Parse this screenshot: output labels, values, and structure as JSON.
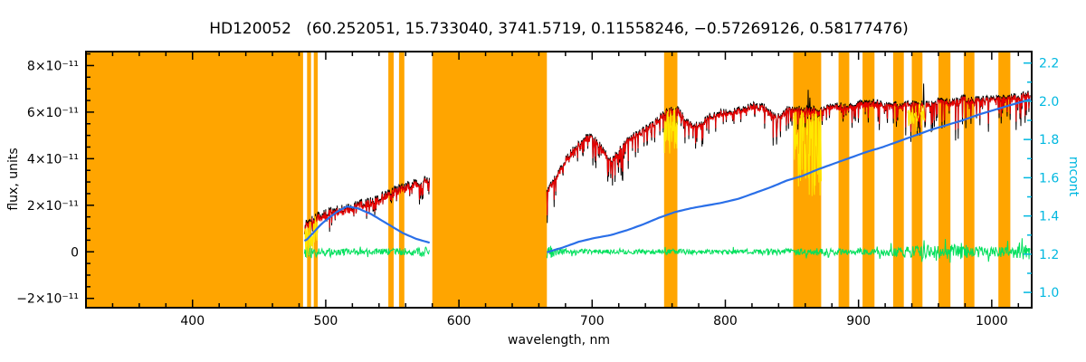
{
  "chart_data": {
    "type": "line",
    "title": "HD120052   (60.252051, 15.733040, 3741.5719, 0.11558246, −0.57269126, 0.58177476)",
    "xlabel": "wavelength, nm",
    "ylabel_left": "flux, units",
    "ylabel_right": "mcont",
    "flux_unit_scale": "×10⁻¹¹",
    "x_range": [
      320,
      1030
    ],
    "y_left_range": [
      -2.4,
      8.6
    ],
    "y_right_range": [
      0.92,
      2.26
    ],
    "x_ticks": [
      400,
      500,
      600,
      700,
      800,
      900,
      1000
    ],
    "x_tick_labels": [
      "400",
      "500",
      "600",
      "700",
      "800",
      "900",
      "1000"
    ],
    "x_minor_tick_step": 20,
    "y_left_ticks": [
      -2,
      0,
      2,
      4,
      6,
      8
    ],
    "y_left_tick_labels": [
      "−2×10⁻¹¹",
      "0",
      "2×10⁻¹¹",
      "4×10⁻¹¹",
      "6×10⁻¹¹",
      "8×10⁻¹¹"
    ],
    "y_left_minor_tick_step": 0.5,
    "y_right_ticks": [
      1.0,
      1.2,
      1.4,
      1.6,
      1.8,
      2.0,
      2.2
    ],
    "y_right_tick_labels": [
      "1.0",
      "1.2",
      "1.4",
      "1.6",
      "1.8",
      "2.0",
      "2.2"
    ],
    "y_right_minor_tick_step": 0.1,
    "grid": false,
    "legend": "none",
    "colors": {
      "background": "#ffffff",
      "axis": "#000000",
      "axis2": "#00b8e0",
      "mask": "#ffa500",
      "spectrum": "#000000",
      "fit": "#e80000",
      "telluric": "#ffe800",
      "residual": "#00e05c",
      "continuum": "#2a6fe8"
    },
    "masked_bands_nm": [
      [
        320,
        483
      ],
      [
        486,
        489
      ],
      [
        491,
        494
      ],
      [
        547,
        551
      ],
      [
        555,
        559
      ],
      [
        580,
        666
      ],
      [
        754,
        764
      ],
      [
        851,
        872
      ],
      [
        885,
        893
      ],
      [
        903,
        912
      ],
      [
        926,
        934
      ],
      [
        940,
        948
      ],
      [
        960,
        969
      ],
      [
        979,
        987
      ],
      [
        1005,
        1014
      ]
    ],
    "series": {
      "spectrum_segments": [
        {
          "x_range": [
            484,
            578
          ],
          "noise_amp": 0.4,
          "flux_anchors": [
            [
              484,
              1.05
            ],
            [
              489,
              1.3
            ],
            [
              495,
              1.5
            ],
            [
              502,
              1.65
            ],
            [
              509,
              1.75
            ],
            [
              516,
              1.8
            ],
            [
              523,
              1.95
            ],
            [
              530,
              2.1
            ],
            [
              538,
              2.2
            ],
            [
              546,
              2.45
            ],
            [
              553,
              2.6
            ],
            [
              560,
              2.75
            ],
            [
              567,
              2.9
            ],
            [
              573,
              3.0
            ],
            [
              578,
              3.05
            ]
          ],
          "spike_depth_anchors": [
            [
              484,
              1.1
            ],
            [
              500,
              0.8
            ],
            [
              520,
              0.85
            ],
            [
              545,
              0.8
            ],
            [
              565,
              0.9
            ],
            [
              578,
              1.0
            ]
          ],
          "continuum_anchors": [
            [
              485,
              1.27
            ],
            [
              497,
              1.36
            ],
            [
              508,
              1.42
            ],
            [
              516,
              1.45
            ],
            [
              524,
              1.44
            ],
            [
              534,
              1.41
            ],
            [
              546,
              1.36
            ],
            [
              558,
              1.31
            ],
            [
              568,
              1.28
            ],
            [
              578,
              1.26
            ]
          ],
          "residual_amp_anchors": [
            [
              484,
              0.3
            ],
            [
              492,
              0.22
            ],
            [
              505,
              0.16
            ],
            [
              520,
              0.14
            ],
            [
              545,
              0.15
            ],
            [
              565,
              0.17
            ],
            [
              578,
              0.22
            ]
          ]
        },
        {
          "x_range": [
            666,
            1029
          ],
          "noise_amp": 0.32,
          "flux_anchors": [
            [
              666,
              2.5
            ],
            [
              672,
              3.1
            ],
            [
              680,
              3.9
            ],
            [
              688,
              4.5
            ],
            [
              695,
              4.85
            ],
            [
              700,
              4.9
            ],
            [
              706,
              4.5
            ],
            [
              712,
              4.0
            ],
            [
              716,
              3.95
            ],
            [
              722,
              4.5
            ],
            [
              728,
              4.85
            ],
            [
              736,
              5.1
            ],
            [
              744,
              5.4
            ],
            [
              752,
              5.8
            ],
            [
              758,
              6.05
            ],
            [
              764,
              6.1
            ],
            [
              770,
              5.6
            ],
            [
              776,
              5.35
            ],
            [
              782,
              5.5
            ],
            [
              790,
              5.8
            ],
            [
              798,
              5.95
            ],
            [
              806,
              6.0
            ],
            [
              814,
              6.1
            ],
            [
              822,
              6.25
            ],
            [
              830,
              6.15
            ],
            [
              836,
              5.8
            ],
            [
              842,
              5.85
            ],
            [
              848,
              6.15
            ],
            [
              856,
              6.1
            ],
            [
              864,
              6.05
            ],
            [
              872,
              6.1
            ],
            [
              880,
              6.25
            ],
            [
              890,
              6.2
            ],
            [
              900,
              6.3
            ],
            [
              910,
              6.35
            ],
            [
              920,
              6.3
            ],
            [
              930,
              6.25
            ],
            [
              940,
              6.35
            ],
            [
              950,
              6.3
            ],
            [
              960,
              6.45
            ],
            [
              970,
              6.4
            ],
            [
              978,
              6.55
            ],
            [
              986,
              6.45
            ],
            [
              995,
              6.5
            ],
            [
              1005,
              6.55
            ],
            [
              1015,
              6.6
            ],
            [
              1029,
              6.75
            ]
          ],
          "spike_depth_anchors": [
            [
              666,
              1.5
            ],
            [
              680,
              1.0
            ],
            [
              695,
              0.9
            ],
            [
              710,
              1.7
            ],
            [
              720,
              1.9
            ],
            [
              730,
              1.1
            ],
            [
              745,
              0.9
            ],
            [
              760,
              0.8
            ],
            [
              772,
              1.5
            ],
            [
              782,
              1.3
            ],
            [
              795,
              1.0
            ],
            [
              810,
              0.9
            ],
            [
              825,
              1.0
            ],
            [
              838,
              1.5
            ],
            [
              850,
              1.1
            ],
            [
              865,
              1.0
            ],
            [
              880,
              1.0
            ],
            [
              895,
              1.1
            ],
            [
              910,
              1.2
            ],
            [
              925,
              1.4
            ],
            [
              940,
              1.6
            ],
            [
              955,
              1.6
            ],
            [
              970,
              1.8
            ],
            [
              985,
              1.5
            ],
            [
              1000,
              1.3
            ],
            [
              1015,
              1.3
            ],
            [
              1029,
              1.4
            ]
          ],
          "continuum_anchors": [
            [
              666,
              1.21
            ],
            [
              678,
              1.235
            ],
            [
              690,
              1.265
            ],
            [
              702,
              1.285
            ],
            [
              714,
              1.3
            ],
            [
              726,
              1.325
            ],
            [
              738,
              1.355
            ],
            [
              750,
              1.39
            ],
            [
              762,
              1.42
            ],
            [
              774,
              1.44
            ],
            [
              786,
              1.455
            ],
            [
              798,
              1.47
            ],
            [
              810,
              1.49
            ],
            [
              822,
              1.52
            ],
            [
              834,
              1.55
            ],
            [
              846,
              1.585
            ],
            [
              858,
              1.61
            ],
            [
              870,
              1.645
            ],
            [
              882,
              1.675
            ],
            [
              894,
              1.705
            ],
            [
              906,
              1.735
            ],
            [
              918,
              1.76
            ],
            [
              930,
              1.79
            ],
            [
              942,
              1.82
            ],
            [
              954,
              1.85
            ],
            [
              966,
              1.875
            ],
            [
              978,
              1.9
            ],
            [
              990,
              1.93
            ],
            [
              1002,
              1.955
            ],
            [
              1014,
              1.98
            ],
            [
              1029,
              2.01
            ]
          ],
          "residual_amp_anchors": [
            [
              666,
              0.3
            ],
            [
              680,
              0.15
            ],
            [
              700,
              0.1
            ],
            [
              730,
              0.1
            ],
            [
              760,
              0.12
            ],
            [
              790,
              0.1
            ],
            [
              820,
              0.12
            ],
            [
              850,
              0.14
            ],
            [
              870,
              0.16
            ],
            [
              890,
              0.13
            ],
            [
              910,
              0.14
            ],
            [
              930,
              0.22
            ],
            [
              945,
              0.28
            ],
            [
              960,
              0.3
            ],
            [
              975,
              0.32
            ],
            [
              990,
              0.25
            ],
            [
              1005,
              0.22
            ],
            [
              1018,
              0.28
            ],
            [
              1029,
              0.35
            ]
          ]
        }
      ],
      "telluric_segments": [
        {
          "x_range": [
            484,
            494
          ],
          "extra_depth": 1.3
        },
        {
          "x_range": [
            754,
            764
          ],
          "extra_depth": 1.6
        },
        {
          "x_range": [
            851,
            872
          ],
          "extra_depth": 3.6
        },
        {
          "x_range": [
            937,
            950
          ],
          "extra_depth": 1.0
        }
      ]
    }
  }
}
